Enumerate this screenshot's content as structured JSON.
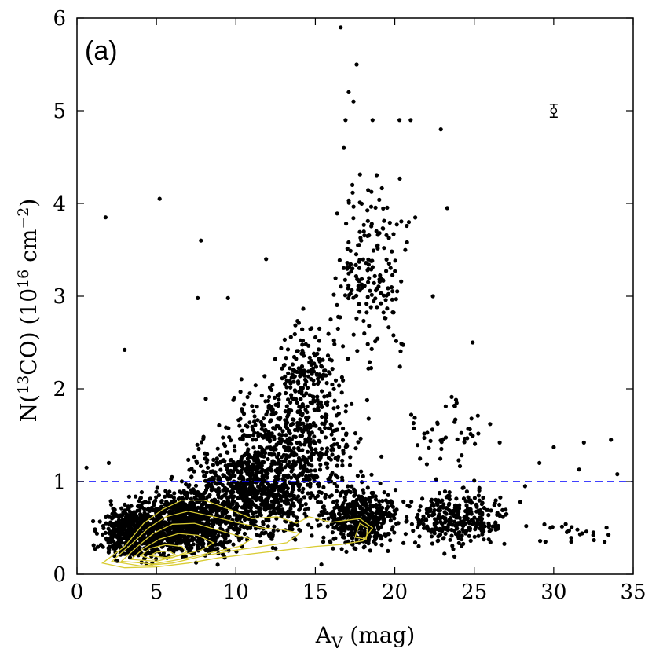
{
  "chart_data": {
    "type": "scatter",
    "panel_label": "(a)",
    "xlabel_main": "A",
    "xlabel_sub": "V",
    "xlabel_unit": " (mag)",
    "ylabel_pre": "N(",
    "ylabel_sup1": "13",
    "ylabel_mid": "CO) (10",
    "ylabel_sup2": "16",
    "ylabel_unit": " cm",
    "ylabel_sup3": "−2",
    "ylabel_close": ")",
    "xlim": [
      0,
      35
    ],
    "ylim": [
      0,
      6
    ],
    "xticks": [
      0,
      5,
      10,
      15,
      20,
      25,
      30,
      35
    ],
    "yticks": [
      0,
      1,
      2,
      3,
      4,
      5,
      6
    ],
    "threshold_line": {
      "y": 1.0,
      "color": "#0000ff",
      "style": "dashed"
    },
    "error_bar": {
      "x": 30.0,
      "y": 5.0,
      "yerr": 0.07
    },
    "point_color": "#000000",
    "contour_color": "#d9cc33",
    "scatter_density": [
      {
        "x_range": [
          1,
          6
        ],
        "y_range": [
          0.1,
          0.8
        ],
        "n": 520
      },
      {
        "x_range": [
          3,
          11
        ],
        "y_range": [
          0.1,
          1.0
        ],
        "n": 900
      },
      {
        "x_range": [
          6,
          16
        ],
        "y_range": [
          0.2,
          1.6
        ],
        "n": 800
      },
      {
        "x_range": [
          8,
          19
        ],
        "y_range": [
          0.6,
          2.2
        ],
        "n": 520
      },
      {
        "x_range": [
          12,
          17
        ],
        "y_range": [
          1.4,
          2.9
        ],
        "n": 180
      },
      {
        "x_range": [
          15,
          21
        ],
        "y_range": [
          0.2,
          1.0
        ],
        "n": 450
      },
      {
        "x_range": [
          15.5,
          21.5
        ],
        "y_range": [
          2.0,
          4.6
        ],
        "n": 190
      },
      {
        "x_range": [
          20,
          28
        ],
        "y_range": [
          0.2,
          1.0
        ],
        "n": 320
      },
      {
        "x_range": [
          20,
          27
        ],
        "y_range": [
          1.0,
          2.0
        ],
        "n": 45
      },
      {
        "x_range": [
          28,
          34
        ],
        "y_range": [
          0.3,
          0.6
        ],
        "n": 18
      }
    ],
    "outliers": [
      [
        16.6,
        5.9
      ],
      [
        17.6,
        5.5
      ],
      [
        17.1,
        5.2
      ],
      [
        17.4,
        5.1
      ],
      [
        16.9,
        4.9
      ],
      [
        18.6,
        4.9
      ],
      [
        20.3,
        4.9
      ],
      [
        21.0,
        4.9
      ],
      [
        22.9,
        4.8
      ],
      [
        16.8,
        4.6
      ],
      [
        1.8,
        3.85
      ],
      [
        5.2,
        4.05
      ],
      [
        23.3,
        3.95
      ],
      [
        7.8,
        3.6
      ],
      [
        11.9,
        3.4
      ],
      [
        9.5,
        2.98
      ],
      [
        7.6,
        2.98
      ],
      [
        22.4,
        3.0
      ],
      [
        3.0,
        2.42
      ],
      [
        24.9,
        2.5
      ],
      [
        30.0,
        1.37
      ],
      [
        33.6,
        1.45
      ],
      [
        31.9,
        1.42
      ],
      [
        34.0,
        1.08
      ],
      [
        0.6,
        1.15
      ],
      [
        2.0,
        1.2
      ],
      [
        29.1,
        1.2
      ],
      [
        31.6,
        1.13
      ],
      [
        33.2,
        0.35
      ],
      [
        32.5,
        0.45
      ],
      [
        31.1,
        0.35
      ],
      [
        26.0,
        1.62
      ],
      [
        26.6,
        1.42
      ],
      [
        28.2,
        0.95
      ],
      [
        27.9,
        0.78
      ],
      [
        29.8,
        0.5
      ]
    ],
    "contours": [
      [
        [
          1.6,
          0.12
        ],
        [
          3.0,
          0.3
        ],
        [
          4.2,
          0.55
        ],
        [
          5.4,
          0.7
        ],
        [
          6.6,
          0.8
        ],
        [
          8.0,
          0.8
        ],
        [
          9.6,
          0.7
        ],
        [
          11.0,
          0.6
        ],
        [
          12.6,
          0.62
        ],
        [
          13.8,
          0.55
        ],
        [
          14.6,
          0.62
        ],
        [
          16.0,
          0.56
        ],
        [
          17.8,
          0.6
        ],
        [
          18.6,
          0.5
        ],
        [
          18.0,
          0.36
        ],
        [
          16.6,
          0.32
        ],
        [
          15.0,
          0.3
        ],
        [
          13.0,
          0.26
        ],
        [
          11.0,
          0.22
        ],
        [
          9.0,
          0.18
        ],
        [
          7.0,
          0.12
        ],
        [
          5.0,
          0.08
        ],
        [
          3.0,
          0.07
        ],
        [
          1.6,
          0.12
        ]
      ],
      [
        [
          2.2,
          0.14
        ],
        [
          3.4,
          0.32
        ],
        [
          4.5,
          0.5
        ],
        [
          5.6,
          0.62
        ],
        [
          7.0,
          0.68
        ],
        [
          8.6,
          0.62
        ],
        [
          10.0,
          0.56
        ],
        [
          11.6,
          0.5
        ],
        [
          13.0,
          0.48
        ],
        [
          14.0,
          0.44
        ],
        [
          13.2,
          0.34
        ],
        [
          11.6,
          0.3
        ],
        [
          10.0,
          0.26
        ],
        [
          8.0,
          0.2
        ],
        [
          6.0,
          0.12
        ],
        [
          4.0,
          0.09
        ],
        [
          2.2,
          0.14
        ]
      ],
      [
        [
          2.8,
          0.14
        ],
        [
          3.8,
          0.3
        ],
        [
          4.8,
          0.44
        ],
        [
          6.0,
          0.54
        ],
        [
          7.4,
          0.55
        ],
        [
          8.8,
          0.48
        ],
        [
          10.0,
          0.42
        ],
        [
          11.0,
          0.38
        ],
        [
          10.2,
          0.3
        ],
        [
          8.6,
          0.24
        ],
        [
          6.8,
          0.17
        ],
        [
          4.8,
          0.11
        ],
        [
          2.8,
          0.14
        ]
      ],
      [
        [
          3.4,
          0.16
        ],
        [
          4.2,
          0.28
        ],
        [
          5.2,
          0.38
        ],
        [
          6.4,
          0.44
        ],
        [
          7.6,
          0.42
        ],
        [
          8.6,
          0.34
        ],
        [
          7.8,
          0.26
        ],
        [
          6.4,
          0.2
        ],
        [
          5.0,
          0.14
        ],
        [
          3.4,
          0.16
        ]
      ],
      [
        [
          4.0,
          0.2
        ],
        [
          4.6,
          0.28
        ],
        [
          5.6,
          0.32
        ],
        [
          6.6,
          0.3
        ],
        [
          6.9,
          0.24
        ],
        [
          6.0,
          0.18
        ],
        [
          4.8,
          0.16
        ],
        [
          4.0,
          0.2
        ]
      ],
      [
        [
          4.6,
          0.2
        ],
        [
          5.0,
          0.24
        ],
        [
          5.8,
          0.25
        ],
        [
          6.2,
          0.21
        ],
        [
          5.6,
          0.18
        ],
        [
          4.6,
          0.2
        ]
      ],
      [
        [
          17.5,
          0.4
        ],
        [
          17.8,
          0.55
        ],
        [
          18.3,
          0.5
        ],
        [
          18.2,
          0.38
        ],
        [
          17.5,
          0.4
        ]
      ]
    ]
  }
}
